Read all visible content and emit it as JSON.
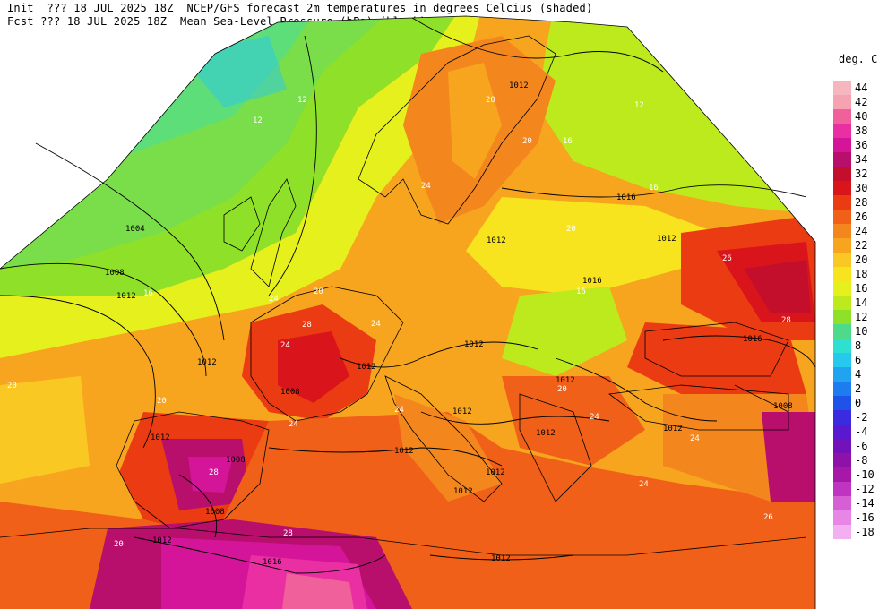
{
  "header": {
    "line1": "Init  ??? 18 JUL 2025 18Z  NCEP/GFS forecast 2m temperatures in degrees Celcius (shaded)",
    "line2": "Fcst ??? 18 JUL 2025 18Z  Mean Sea-Level Pressure (hPa) (black)"
  },
  "legend": {
    "unit": "deg. C",
    "entries": [
      {
        "label": "44",
        "color": "#f6b6bd"
      },
      {
        "label": "42",
        "color": "#f5a3b0"
      },
      {
        "label": "40",
        "color": "#f0609a"
      },
      {
        "label": "38",
        "color": "#ea2fa3"
      },
      {
        "label": "36",
        "color": "#d4159a"
      },
      {
        "label": "34",
        "color": "#b80e6c"
      },
      {
        "label": "32",
        "color": "#c40f2c"
      },
      {
        "label": "30",
        "color": "#d9151b"
      },
      {
        "label": "28",
        "color": "#ea3b13"
      },
      {
        "label": "26",
        "color": "#f06018"
      },
      {
        "label": "24",
        "color": "#f4861e"
      },
      {
        "label": "22",
        "color": "#f7a51f"
      },
      {
        "label": "20",
        "color": "#fac823"
      },
      {
        "label": "18",
        "color": "#f7e41f"
      },
      {
        "label": "16",
        "color": "#e6f01c"
      },
      {
        "label": "14",
        "color": "#bdea1d"
      },
      {
        "label": "12",
        "color": "#8fe028"
      },
      {
        "label": "10",
        "color": "#4fd98a"
      },
      {
        "label": "8",
        "color": "#2ee0cf"
      },
      {
        "label": "6",
        "color": "#27c8ee"
      },
      {
        "label": "4",
        "color": "#21a4f0"
      },
      {
        "label": "2",
        "color": "#1d7cef"
      },
      {
        "label": "0",
        "color": "#1f52e8"
      },
      {
        "label": "-2",
        "color": "#3a2be1"
      },
      {
        "label": "-4",
        "color": "#5a18cf"
      },
      {
        "label": "-6",
        "color": "#7312b9"
      },
      {
        "label": "-8",
        "color": "#8e12a8"
      },
      {
        "label": "-10",
        "color": "#a717a8"
      },
      {
        "label": "-12",
        "color": "#c034c2"
      },
      {
        "label": "-14",
        "color": "#d65fd6"
      },
      {
        "label": "-16",
        "color": "#e886e6"
      },
      {
        "label": "-18",
        "color": "#f4aef2"
      }
    ]
  },
  "isobar_labels": [
    "1004",
    "1008",
    "1012",
    "1012",
    "1012",
    "1008",
    "1012",
    "1012",
    "1016",
    "1012",
    "1012",
    "1012",
    "1012",
    "1008",
    "1012",
    "1012",
    "1012",
    "1012",
    "1012",
    "1008",
    "1012",
    "1008",
    "1012",
    "1012",
    "1016",
    "1016",
    "1016"
  ],
  "temp_labels": [
    "12",
    "12",
    "20",
    "16",
    "24",
    "20",
    "24",
    "28",
    "24",
    "20",
    "16",
    "20",
    "20",
    "24",
    "26",
    "28",
    "20",
    "24",
    "24",
    "24",
    "28",
    "20",
    "24",
    "28",
    "26",
    "24",
    "12",
    "16",
    "16",
    "20"
  ]
}
